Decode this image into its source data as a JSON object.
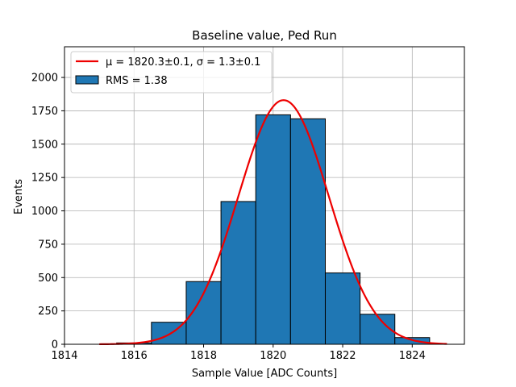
{
  "chart_data": {
    "type": "bar",
    "title": "Baseline value, Ped Run",
    "xlabel": "Sample Value [ADC Counts]",
    "ylabel": "Events",
    "xlim": [
      1814,
      1825.5
    ],
    "ylim": [
      0,
      2230
    ],
    "xticks": [
      1814,
      1816,
      1818,
      1820,
      1822,
      1824
    ],
    "yticks": [
      0,
      250,
      500,
      750,
      1000,
      1250,
      1500,
      1750,
      2000
    ],
    "grid": true,
    "legend_position": "top-left",
    "bins": [
      {
        "left": 1815.5,
        "right": 1816.5,
        "value": 10
      },
      {
        "left": 1816.5,
        "right": 1817.5,
        "value": 165
      },
      {
        "left": 1817.5,
        "right": 1818.5,
        "value": 470
      },
      {
        "left": 1818.5,
        "right": 1819.5,
        "value": 1070
      },
      {
        "left": 1819.5,
        "right": 1820.5,
        "value": 1720
      },
      {
        "left": 1820.5,
        "right": 1821.5,
        "value": 1690
      },
      {
        "left": 1821.5,
        "right": 1822.5,
        "value": 535
      },
      {
        "left": 1822.5,
        "right": 1823.5,
        "value": 225
      },
      {
        "left": 1823.5,
        "right": 1824.5,
        "value": 50
      }
    ],
    "fit": {
      "type": "gaussian",
      "mu": 1820.3,
      "sigma": 1.3,
      "amplitude": 1830,
      "x_range": [
        1815,
        1825
      ]
    },
    "legend": [
      {
        "label": "μ = 1820.3±0.1, σ = 1.3±0.1",
        "kind": "line",
        "color": "#ee0000"
      },
      {
        "label": "RMS = 1.38",
        "kind": "patch",
        "color": "#1f77b4"
      }
    ]
  }
}
